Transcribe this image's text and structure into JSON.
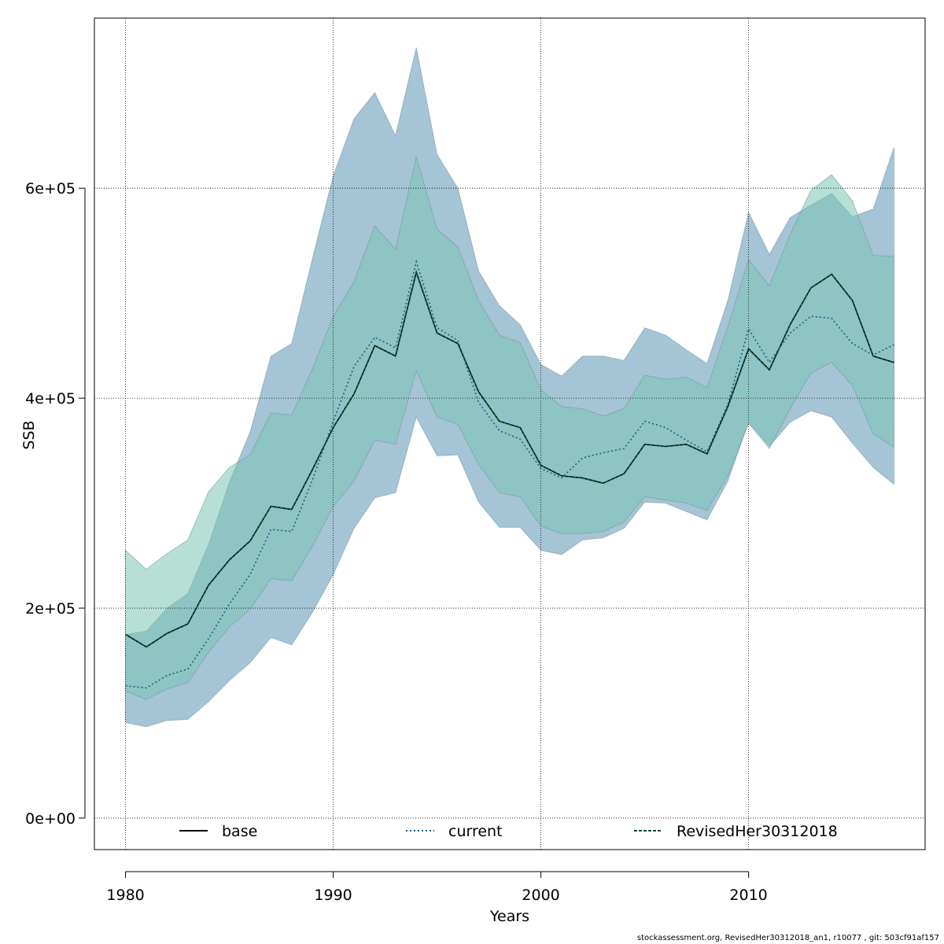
{
  "chart_data": {
    "type": "area",
    "xlabel": "Years",
    "ylabel": "SSB",
    "xlim": [
      1978.5,
      2018.5
    ],
    "ylim": [
      -30000,
      762000
    ],
    "x_ticks": [
      1980,
      1990,
      2000,
      2010
    ],
    "x_tick_labels": [
      "1980",
      "1990",
      "2000",
      "2010"
    ],
    "y_ticks": [
      0,
      200000,
      400000,
      600000
    ],
    "y_tick_labels": [
      "0e+00",
      "2e+05",
      "4e+05",
      "6e+05"
    ],
    "grid": true,
    "legend_position": "bottom",
    "x": [
      1980,
      1981,
      1982,
      1983,
      1984,
      1985,
      1986,
      1987,
      1988,
      1989,
      1990,
      1991,
      1992,
      1993,
      1994,
      1995,
      1996,
      1997,
      1998,
      1999,
      2000,
      2001,
      2002,
      2003,
      2004,
      2005,
      2006,
      2007,
      2008,
      2009,
      2010,
      2011,
      2012,
      2013,
      2014,
      2015,
      2016,
      2017
    ],
    "series": [
      {
        "name": "base",
        "line_style": "solid",
        "color": "#000000",
        "band_color": "#7cc4b4",
        "values": [
          175000,
          163000,
          176000,
          185000,
          222000,
          246000,
          264000,
          297000,
          294000,
          332000,
          372000,
          404000,
          450000,
          440000,
          520000,
          462000,
          452000,
          406000,
          378000,
          372000,
          336000,
          326000,
          324000,
          319000,
          328000,
          356000,
          354000,
          356000,
          347000,
          392000,
          447000,
          427000,
          470000,
          505000,
          518000,
          493000,
          440000,
          434000
        ],
        "lower": [
          121000,
          113000,
          123000,
          129000,
          158000,
          182000,
          199000,
          228000,
          226000,
          259000,
          297000,
          321000,
          360000,
          356000,
          426000,
          382000,
          375000,
          337000,
          310000,
          306000,
          278000,
          271000,
          271000,
          273000,
          282000,
          306000,
          303000,
          300000,
          293000,
          326000,
          376000,
          352000,
          390000,
          424000,
          434000,
          412000,
          366000,
          353000
        ],
        "upper": [
          255000,
          237000,
          252000,
          265000,
          311000,
          334000,
          346000,
          386000,
          384000,
          428000,
          478000,
          511000,
          564000,
          542000,
          630000,
          561000,
          544000,
          493000,
          460000,
          453000,
          408000,
          392000,
          390000,
          383000,
          390000,
          422000,
          418000,
          420000,
          410000,
          468000,
          532000,
          507000,
          556000,
          598000,
          613000,
          588000,
          536000,
          535000
        ]
      },
      {
        "name": "current",
        "line_style": "dotted",
        "color": "#1a5a8a",
        "band_color": "#5b93b5",
        "values": [
          126000,
          124000,
          136000,
          142000,
          171000,
          204000,
          232000,
          275000,
          273000,
          322000,
          378000,
          430000,
          458000,
          448000,
          530000,
          467000,
          455000,
          396000,
          369000,
          361000,
          333000,
          324000,
          343000,
          348000,
          352000,
          378000,
          372000,
          360000,
          349000,
          394000,
          466000,
          434000,
          462000,
          478000,
          476000,
          452000,
          441000,
          451000
        ],
        "lower": [
          91000,
          87000,
          93000,
          94000,
          111000,
          131000,
          148000,
          172000,
          165000,
          196000,
          232000,
          276000,
          305000,
          310000,
          382000,
          345000,
          346000,
          301000,
          277000,
          277000,
          255000,
          251000,
          265000,
          267000,
          276000,
          301000,
          300000,
          292000,
          284000,
          321000,
          377000,
          354000,
          377000,
          388000,
          382000,
          357000,
          334000,
          318000
        ],
        "upper": [
          175000,
          178000,
          200000,
          214000,
          261000,
          320000,
          368000,
          440000,
          452000,
          533000,
          612000,
          666000,
          691000,
          650000,
          734000,
          632000,
          600000,
          521000,
          488000,
          470000,
          432000,
          421000,
          440000,
          440000,
          436000,
          467000,
          460000,
          446000,
          433000,
          493000,
          577000,
          537000,
          572000,
          584000,
          595000,
          573000,
          580000,
          639000
        ]
      },
      {
        "name": "RevisedHer30312018",
        "line_style": "dashed",
        "color": "#0b4a3f",
        "band_color": "#7cc4b4",
        "values": [
          175000,
          163000,
          176000,
          185000,
          222000,
          246000,
          264000,
          297000,
          294000,
          332000,
          372000,
          404000,
          450000,
          440000,
          520000,
          462000,
          452000,
          406000,
          378000,
          372000,
          336000,
          326000,
          324000,
          319000,
          328000,
          356000,
          354000,
          356000,
          347000,
          392000,
          447000,
          427000,
          470000,
          505000,
          518000,
          493000,
          440000,
          434000
        ],
        "lower": [
          121000,
          113000,
          123000,
          129000,
          158000,
          182000,
          199000,
          228000,
          226000,
          259000,
          297000,
          321000,
          360000,
          356000,
          426000,
          382000,
          375000,
          337000,
          310000,
          306000,
          278000,
          271000,
          271000,
          273000,
          282000,
          306000,
          303000,
          300000,
          293000,
          326000,
          376000,
          352000,
          390000,
          424000,
          434000,
          412000,
          366000,
          353000
        ],
        "upper": [
          255000,
          237000,
          252000,
          265000,
          311000,
          334000,
          346000,
          386000,
          384000,
          428000,
          478000,
          511000,
          564000,
          542000,
          630000,
          561000,
          544000,
          493000,
          460000,
          453000,
          408000,
          392000,
          390000,
          383000,
          390000,
          422000,
          418000,
          420000,
          410000,
          468000,
          532000,
          507000,
          556000,
          598000,
          613000,
          588000,
          536000,
          535000
        ]
      }
    ],
    "footer": "stockassessment.org, RevisedHer30312018_an1, r10077 , git: 503cf91af157"
  }
}
